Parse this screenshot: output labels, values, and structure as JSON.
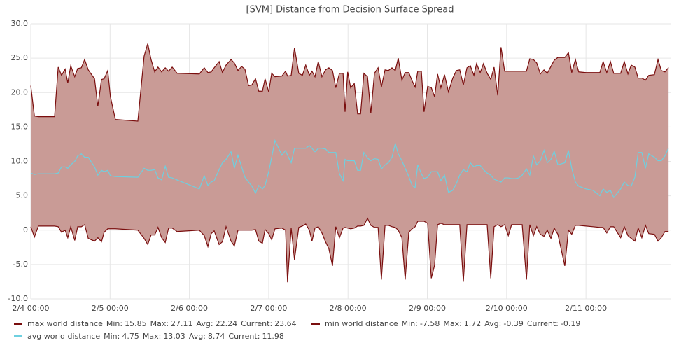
{
  "chart_data": {
    "type": "band",
    "title": "[SVM] Distance from Decision Surface Spread",
    "x": [
      0,
      1.1,
      2.3,
      7.2,
      8.3,
      9.3,
      10.4,
      11.2,
      12.1,
      13.3,
      14.2,
      15.3,
      16.3,
      17.4,
      19.3,
      20.3,
      21.4,
      22.2,
      23.3,
      24.1,
      25.6,
      32.4,
      34.3,
      35.4,
      36.4,
      37.5,
      38.5,
      39.6,
      40.7,
      41.7,
      42.8,
      44.3,
      51.0,
      52.5,
      53.6,
      54.6,
      55.5,
      57.0,
      58.0,
      59.1,
      60.6,
      61.6,
      62.7,
      63.8,
      64.8,
      65.9,
      66.9,
      68.0,
      69.0,
      70.1,
      70.9,
      72.0,
      72.9,
      73.9,
      76.0,
      77.1,
      77.7,
      78.8,
      79.8,
      81.1,
      82.2,
      83.2,
      84.3,
      85.1,
      86.0,
      87.0,
      88.1,
      89.2,
      90.2,
      91.3,
      92.3,
      93.4,
      94.5,
      95.1,
      95.9,
      96.8,
      97.9,
      98.9,
      99.8,
      100.8,
      101.9,
      102.9,
      104.0,
      105.1,
      106.1,
      107.2,
      108.2,
      109.3,
      110.3,
      111.2,
      112.3,
      113.3,
      114.4,
      115.4,
      116.3,
      117.1,
      118.2,
      119.0,
      120.1,
      121.2,
      122.2,
      123.1,
      124.1,
      125.2,
      126.4,
      127.7,
      128.8,
      129.8,
      130.9,
      132.0,
      133.0,
      134.1,
      134.9,
      136.0,
      137.0,
      138.1,
      139.2,
      140.2,
      141.3,
      142.3,
      143.4,
      144.5,
      145.5,
      146.6,
      147.6,
      148.7,
      150.0,
      151.0,
      152.1,
      153.1,
      154.2,
      155.3,
      156.3,
      157.4,
      158.4,
      159.5,
      161.6,
      162.7,
      163.7,
      164.8,
      165.8,
      168.0,
      170.1,
      172.2,
      173.2,
      174.3,
      175.4,
      176.4,
      178.5,
      179.6,
      180.7,
      181.7,
      182.8,
      183.8,
      184.9,
      186.0,
      187.0,
      188.7,
      189.8,
      190.8,
      191.9,
      193.0
    ],
    "series": [
      {
        "name": "max world distance",
        "color": "#7a0e0e",
        "stats": [
          15.85,
          27.11,
          22.24,
          23.64
        ],
        "values": [
          21.0,
          16.6,
          16.5,
          16.5,
          23.7,
          22.5,
          23.4,
          21.4,
          23.9,
          22.3,
          23.5,
          23.6,
          24.8,
          23.3,
          22.0,
          18.0,
          21.9,
          22.0,
          23.2,
          19.4,
          16.1,
          15.85,
          25.3,
          27.11,
          24.8,
          23.0,
          23.7,
          23.0,
          23.6,
          23.1,
          23.7,
          22.8,
          22.7,
          23.6,
          22.9,
          23.0,
          23.6,
          24.5,
          22.9,
          24.0,
          24.8,
          24.3,
          23.2,
          23.8,
          23.4,
          21.0,
          21.1,
          22.0,
          20.2,
          20.2,
          22.0,
          20.1,
          22.8,
          22.3,
          22.4,
          23.1,
          22.4,
          22.5,
          26.5,
          22.8,
          22.5,
          24.0,
          22.5,
          23.1,
          22.3,
          24.5,
          22.3,
          23.3,
          23.6,
          23.2,
          20.7,
          22.8,
          22.8,
          17.2,
          23.0,
          20.7,
          21.3,
          16.9,
          16.9,
          22.8,
          22.3,
          17.0,
          22.8,
          23.6,
          20.8,
          23.3,
          23.2,
          23.6,
          23.2,
          25.0,
          21.8,
          22.9,
          22.9,
          21.7,
          20.8,
          23.1,
          23.1,
          17.2,
          20.9,
          20.7,
          19.4,
          22.7,
          20.7,
          22.6,
          20.1,
          22.1,
          23.2,
          23.3,
          21.1,
          23.6,
          23.9,
          22.5,
          24.2,
          22.9,
          24.2,
          22.8,
          21.9,
          23.7,
          19.6,
          26.6,
          23.1,
          23.1,
          23.1,
          23.1,
          23.1,
          23.1,
          23.1,
          24.9,
          24.8,
          24.3,
          22.7,
          23.3,
          22.8,
          23.8,
          24.7,
          25.1,
          25.1,
          25.8,
          22.9,
          24.8,
          23.0,
          22.9,
          22.9,
          22.9,
          24.5,
          22.9,
          24.5,
          22.8,
          22.8,
          24.5,
          22.7,
          24.0,
          23.7,
          22.1,
          22.1,
          21.8,
          22.5,
          22.6,
          24.8,
          23.2,
          23.0,
          23.64
        ]
      },
      {
        "name": "min world distance",
        "color": "#7a0e0e",
        "stats": [
          -7.58,
          1.72,
          -0.39,
          -0.19
        ],
        "values": [
          0.5,
          -1.0,
          0.6,
          0.6,
          0.5,
          -0.3,
          0,
          -1.1,
          0.5,
          -1.5,
          0.5,
          0.5,
          0.8,
          -1.2,
          -1.6,
          -1.1,
          -1.7,
          -0.3,
          0.2,
          0.2,
          0.2,
          0,
          -1.2,
          -2.1,
          -0.7,
          -0.7,
          0.4,
          -1.1,
          -1.8,
          0.3,
          0.3,
          -0.2,
          0,
          -0.8,
          -2.4,
          -0.5,
          -0.1,
          -2.1,
          -1.7,
          0.5,
          -1.6,
          -2.3,
          0,
          0,
          0,
          0,
          0,
          0.1,
          -1.6,
          -1.9,
          0.1,
          -0.5,
          -1.4,
          0.2,
          0.3,
          0,
          -7.58,
          0.3,
          -4.3,
          0.4,
          0.6,
          0.9,
          0,
          -1.6,
          0.3,
          0.5,
          -0.4,
          -1.7,
          -2.7,
          -5.2,
          0.5,
          -1.1,
          0.3,
          0.4,
          0.3,
          0.2,
          0.3,
          0.6,
          0.6,
          0.7,
          1.72,
          0.7,
          0.4,
          0.4,
          -7.2,
          0.7,
          0.7,
          0.5,
          0.4,
          0,
          -1.1,
          -7.2,
          -0.3,
          0.2,
          0.5,
          1.3,
          1.3,
          1.3,
          1.0,
          -7.0,
          -5.1,
          0.8,
          1.0,
          0.8,
          0.8,
          0.8,
          0.8,
          0.8,
          -7.5,
          0.8,
          0.8,
          0.8,
          0.8,
          0.8,
          0.8,
          0.8,
          -7.0,
          0.5,
          0.8,
          0.5,
          0.8,
          -0.8,
          0.8,
          0.8,
          0.8,
          0.8,
          -7.2,
          0.8,
          -0.8,
          0.5,
          -0.6,
          -0.9,
          0,
          -1.2,
          0.3,
          -0.6,
          -5.2,
          0,
          -0.6,
          0.7,
          0.7,
          0.6,
          0.5,
          0.4,
          0.4,
          -0.4,
          0.5,
          0.5,
          -1.1,
          0.5,
          -0.8,
          -1.2,
          -1.6,
          0.3,
          -1.1,
          0.7,
          -0.5,
          -0.6,
          -1.6,
          -1.1,
          -0.2,
          -0.19
        ]
      },
      {
        "name": "avg world distance",
        "color": "#6ed0e0",
        "stats": [
          4.75,
          13.03,
          8.74,
          11.98
        ],
        "values": [
          8.3,
          8.1,
          8.2,
          8.2,
          8.3,
          9.2,
          9.2,
          9.0,
          9.5,
          10.0,
          10.8,
          11.1,
          10.6,
          10.6,
          9.2,
          8.0,
          8.7,
          8.5,
          8.7,
          7.9,
          7.8,
          7.7,
          9.0,
          8.7,
          8.7,
          8.8,
          7.6,
          7.3,
          9.3,
          7.7,
          7.6,
          7.3,
          6.0,
          7.9,
          6.5,
          7.0,
          7.2,
          8.8,
          9.8,
          10.3,
          11.4,
          9.0,
          10.9,
          9.2,
          7.7,
          7.0,
          6.4,
          5.4,
          6.5,
          6.0,
          6.5,
          8.5,
          10.6,
          13.03,
          10.9,
          11.6,
          10.9,
          9.8,
          11.9,
          11.9,
          11.9,
          11.9,
          12.3,
          11.9,
          11.4,
          11.9,
          11.9,
          11.8,
          11.3,
          11.3,
          11.3,
          8.2,
          7.2,
          10.3,
          10.1,
          10.1,
          10.1,
          8.7,
          8.7,
          11.3,
          10.5,
          10.1,
          10.4,
          10.3,
          8.9,
          9.5,
          9.8,
          10.6,
          12.6,
          11.1,
          10.1,
          9.0,
          7.8,
          6.5,
          6.2,
          9.5,
          8.2,
          7.5,
          7.7,
          8.5,
          8.5,
          8.5,
          7.2,
          8.0,
          5.5,
          5.8,
          6.8,
          8.0,
          8.8,
          8.5,
          9.8,
          9.2,
          9.4,
          9.4,
          8.8,
          8.3,
          8.0,
          7.4,
          7.2,
          7.0,
          7.6,
          7.6,
          7.5,
          7.5,
          7.6,
          8.0,
          8.9,
          8.0,
          10.8,
          9.5,
          10.1,
          11.6,
          9.8,
          10.3,
          11.5,
          9.5,
          9.8,
          11.6,
          9.0,
          7.0,
          6.4,
          6.0,
          5.8,
          5.0,
          6.0,
          5.5,
          5.8,
          4.75,
          6.0,
          7.0,
          6.5,
          6.4,
          7.7,
          11.3,
          11.3,
          9.0,
          11.1,
          10.6,
          10.1,
          10.1,
          10.8,
          11.98
        ]
      }
    ],
    "stat_labels": [
      "Min:",
      "Max:",
      "Avg:",
      "Current:"
    ],
    "fill": "#c99b96",
    "xlim": [
      0,
      193.6
    ],
    "xticks": [
      {
        "value": 0,
        "label": "2/4 00:00"
      },
      {
        "value": 24,
        "label": "2/5 00:00"
      },
      {
        "value": 48,
        "label": "2/6 00:00"
      },
      {
        "value": 72,
        "label": "2/7 00:00"
      },
      {
        "value": 96,
        "label": "2/8 00:00"
      },
      {
        "value": 120,
        "label": "2/9 00:00"
      },
      {
        "value": 144,
        "label": "2/10 00:00"
      },
      {
        "value": 168,
        "label": "2/11 00:00"
      }
    ],
    "ylim": [
      -10,
      30
    ],
    "yticks": [
      {
        "value": -10,
        "label": "-10.0"
      },
      {
        "value": -5,
        "label": "-5.0"
      },
      {
        "value": 0,
        "label": "0"
      },
      {
        "value": 5,
        "label": "5.0"
      },
      {
        "value": 10,
        "label": "10.0"
      },
      {
        "value": 15,
        "label": "15.0"
      },
      {
        "value": 20,
        "label": "20.0"
      },
      {
        "value": 25,
        "label": "25.0"
      },
      {
        "value": 30,
        "label": "30.0"
      }
    ],
    "grid": true
  }
}
